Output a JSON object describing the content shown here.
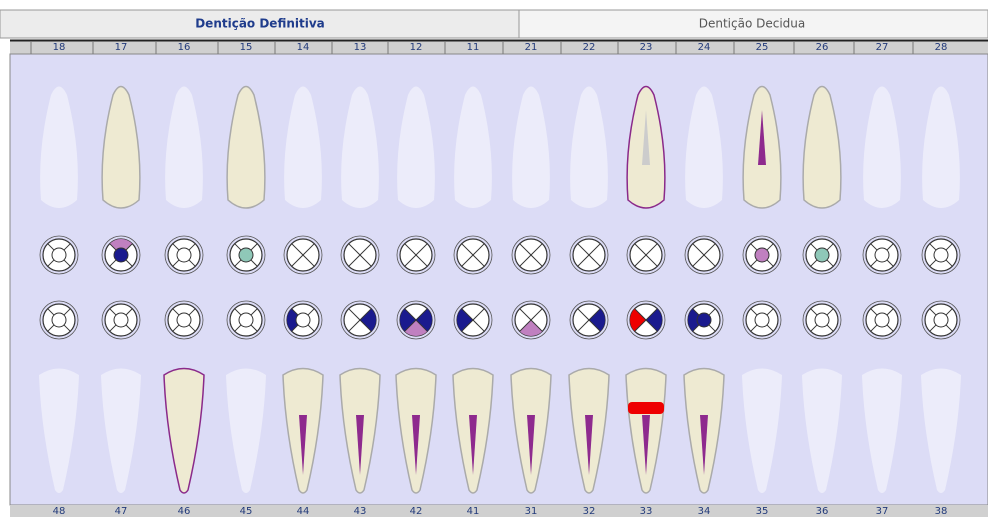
{
  "tabs": {
    "active": "Dentição Definitiva",
    "inactive": "Dentição Decidua"
  },
  "upper_numbers": [
    "18",
    "17",
    "16",
    "15",
    "14",
    "13",
    "12",
    "11",
    "21",
    "22",
    "23",
    "24",
    "25",
    "26",
    "27",
    "28"
  ],
  "lower_numbers": [
    "48",
    "47",
    "46",
    "45",
    "44",
    "43",
    "42",
    "41",
    "31",
    "32",
    "33",
    "34",
    "35",
    "36",
    "37",
    "38"
  ]
}
